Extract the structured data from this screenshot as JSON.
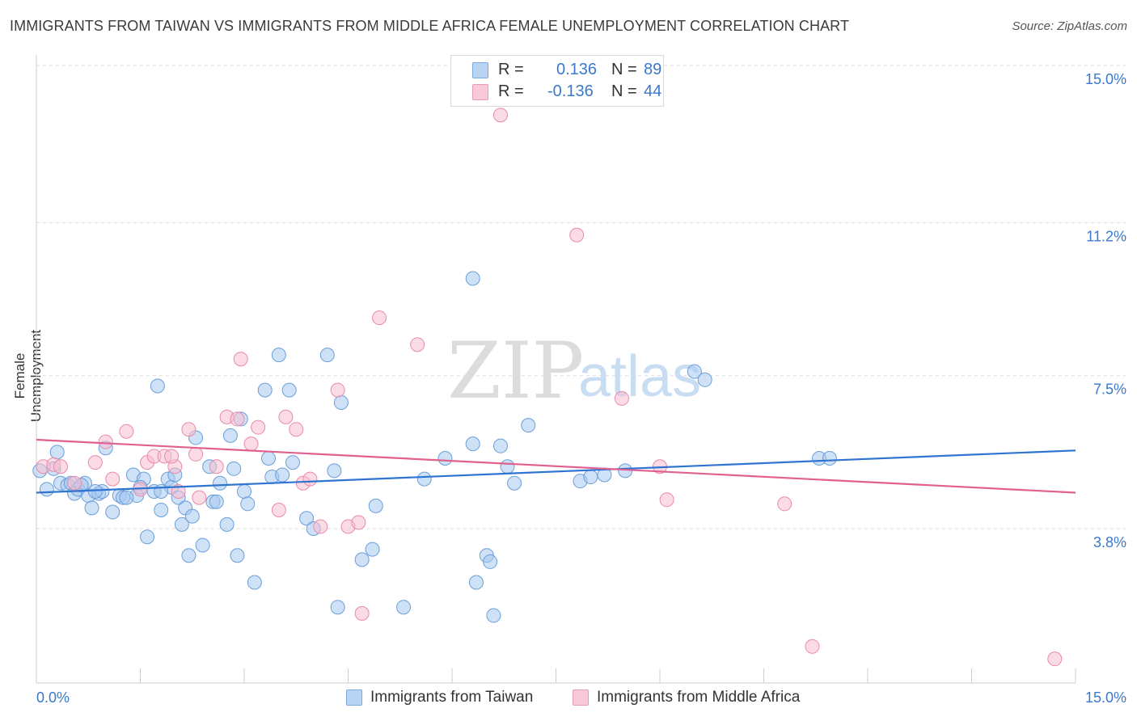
{
  "chart_data": {
    "type": "scatter",
    "title": "IMMIGRANTS FROM TAIWAN VS IMMIGRANTS FROM MIDDLE AFRICA FEMALE UNEMPLOYMENT CORRELATION CHART",
    "source": "Source: ZipAtlas.com",
    "xlabel": "",
    "ylabel": "Female Unemployment",
    "xlim": [
      0,
      15
    ],
    "ylim": [
      0,
      15.5
    ],
    "x_tick_labels": {
      "left": "0.0%",
      "right": "15.0%"
    },
    "y_ticks": [
      {
        "value": 3.8,
        "label": "3.8%"
      },
      {
        "value": 7.5,
        "label": "7.5%"
      },
      {
        "value": 11.2,
        "label": "11.2%"
      },
      {
        "value": 15.0,
        "label": "15.0%"
      }
    ],
    "watermark": {
      "part1": "ZIP",
      "part2": "atlas"
    },
    "legend": [
      {
        "r_label": "R = ",
        "r_value": "0.136",
        "n_label": "N = ",
        "n_value": "89"
      },
      {
        "r_label": "R = ",
        "r_value": "-0.136",
        "n_label": "N = ",
        "n_value": "44"
      }
    ],
    "series": [
      {
        "name": "Immigrants from Taiwan",
        "color": "#a8c8f0",
        "stroke": "#6a9fd8",
        "line_color": "#2f74d0",
        "trend": {
          "x0": 0,
          "y0": 4.67,
          "x1": 15,
          "y1": 5.69
        },
        "points": [
          [
            0.05,
            5.2
          ],
          [
            0.15,
            4.75
          ],
          [
            0.3,
            5.65
          ],
          [
            0.35,
            4.9
          ],
          [
            0.45,
            4.85
          ],
          [
            0.5,
            4.9
          ],
          [
            0.55,
            4.65
          ],
          [
            0.6,
            4.75
          ],
          [
            0.7,
            4.9
          ],
          [
            0.75,
            4.6
          ],
          [
            0.8,
            4.3
          ],
          [
            0.9,
            4.65
          ],
          [
            0.95,
            4.7
          ],
          [
            1.0,
            5.75
          ],
          [
            1.1,
            4.2
          ],
          [
            1.2,
            4.6
          ],
          [
            1.25,
            4.55
          ],
          [
            1.4,
            5.1
          ],
          [
            1.45,
            4.6
          ],
          [
            1.55,
            5.0
          ],
          [
            1.6,
            3.6
          ],
          [
            1.7,
            4.7
          ],
          [
            1.75,
            7.25
          ],
          [
            1.8,
            4.25
          ],
          [
            1.9,
            5.0
          ],
          [
            1.95,
            4.8
          ],
          [
            2.0,
            5.1
          ],
          [
            2.05,
            4.55
          ],
          [
            2.1,
            3.9
          ],
          [
            2.15,
            4.3
          ],
          [
            2.2,
            3.15
          ],
          [
            2.25,
            4.1
          ],
          [
            2.3,
            6.0
          ],
          [
            2.4,
            3.4
          ],
          [
            2.5,
            5.3
          ],
          [
            2.55,
            4.45
          ],
          [
            2.65,
            4.9
          ],
          [
            2.75,
            3.9
          ],
          [
            2.8,
            6.05
          ],
          [
            2.85,
            5.25
          ],
          [
            2.9,
            3.15
          ],
          [
            2.95,
            6.45
          ],
          [
            3.0,
            4.7
          ],
          [
            3.05,
            4.4
          ],
          [
            3.15,
            2.5
          ],
          [
            3.3,
            7.15
          ],
          [
            3.35,
            5.5
          ],
          [
            3.4,
            5.05
          ],
          [
            3.5,
            8.0
          ],
          [
            3.65,
            7.15
          ],
          [
            3.7,
            5.4
          ],
          [
            3.9,
            4.05
          ],
          [
            4.0,
            3.8
          ],
          [
            4.2,
            8.0
          ],
          [
            4.3,
            5.2
          ],
          [
            4.35,
            1.9
          ],
          [
            4.4,
            6.85
          ],
          [
            4.7,
            3.05
          ],
          [
            4.85,
            3.3
          ],
          [
            4.9,
            4.35
          ],
          [
            5.3,
            1.9
          ],
          [
            5.6,
            5.0
          ],
          [
            5.9,
            5.5
          ],
          [
            6.3,
            9.85
          ],
          [
            6.35,
            2.5
          ],
          [
            6.5,
            3.15
          ],
          [
            6.55,
            3.0
          ],
          [
            6.6,
            1.7
          ],
          [
            6.3,
            5.85
          ],
          [
            6.7,
            5.8
          ],
          [
            6.8,
            5.3
          ],
          [
            6.9,
            4.9
          ],
          [
            7.1,
            6.3
          ],
          [
            7.85,
            4.95
          ],
          [
            8.2,
            5.1
          ],
          [
            8.0,
            5.05
          ],
          [
            8.5,
            5.2
          ],
          [
            9.5,
            7.6
          ],
          [
            9.65,
            7.4
          ],
          [
            11.3,
            5.5
          ],
          [
            11.45,
            5.5
          ],
          [
            1.3,
            4.55
          ],
          [
            1.5,
            4.8
          ],
          [
            1.8,
            4.7
          ],
          [
            0.25,
            5.25
          ],
          [
            0.65,
            4.85
          ],
          [
            0.85,
            4.7
          ],
          [
            2.6,
            4.45
          ],
          [
            3.55,
            5.1
          ]
        ]
      },
      {
        "name": "Immigrants from Middle Africa",
        "color": "#f7bfd0",
        "stroke": "#e88aaa",
        "line_color": "#e0608e",
        "trend": {
          "x0": 0,
          "y0": 5.95,
          "x1": 15,
          "y1": 4.67
        },
        "points": [
          [
            0.1,
            5.3
          ],
          [
            0.25,
            5.35
          ],
          [
            0.55,
            4.9
          ],
          [
            0.85,
            5.4
          ],
          [
            1.0,
            5.9
          ],
          [
            1.1,
            5.0
          ],
          [
            1.3,
            6.15
          ],
          [
            1.5,
            4.75
          ],
          [
            1.6,
            5.4
          ],
          [
            1.7,
            5.55
          ],
          [
            1.85,
            5.55
          ],
          [
            2.0,
            5.3
          ],
          [
            2.2,
            6.2
          ],
          [
            2.3,
            5.6
          ],
          [
            2.35,
            4.55
          ],
          [
            2.6,
            5.3
          ],
          [
            2.75,
            6.5
          ],
          [
            2.9,
            6.45
          ],
          [
            2.95,
            7.9
          ],
          [
            3.1,
            5.85
          ],
          [
            3.2,
            6.25
          ],
          [
            3.5,
            4.25
          ],
          [
            3.6,
            6.5
          ],
          [
            3.75,
            6.2
          ],
          [
            3.85,
            4.9
          ],
          [
            4.1,
            3.85
          ],
          [
            4.35,
            7.15
          ],
          [
            4.5,
            3.85
          ],
          [
            4.65,
            3.95
          ],
          [
            4.7,
            1.75
          ],
          [
            4.95,
            8.9
          ],
          [
            5.5,
            8.25
          ],
          [
            6.7,
            13.8
          ],
          [
            7.8,
            10.9
          ],
          [
            8.45,
            6.95
          ],
          [
            9.0,
            5.3
          ],
          [
            9.1,
            4.5
          ],
          [
            10.8,
            4.4
          ],
          [
            11.2,
            0.95
          ],
          [
            14.7,
            0.65
          ],
          [
            0.35,
            5.3
          ],
          [
            1.95,
            5.55
          ],
          [
            2.05,
            4.7
          ],
          [
            3.95,
            5.0
          ]
        ]
      }
    ]
  }
}
